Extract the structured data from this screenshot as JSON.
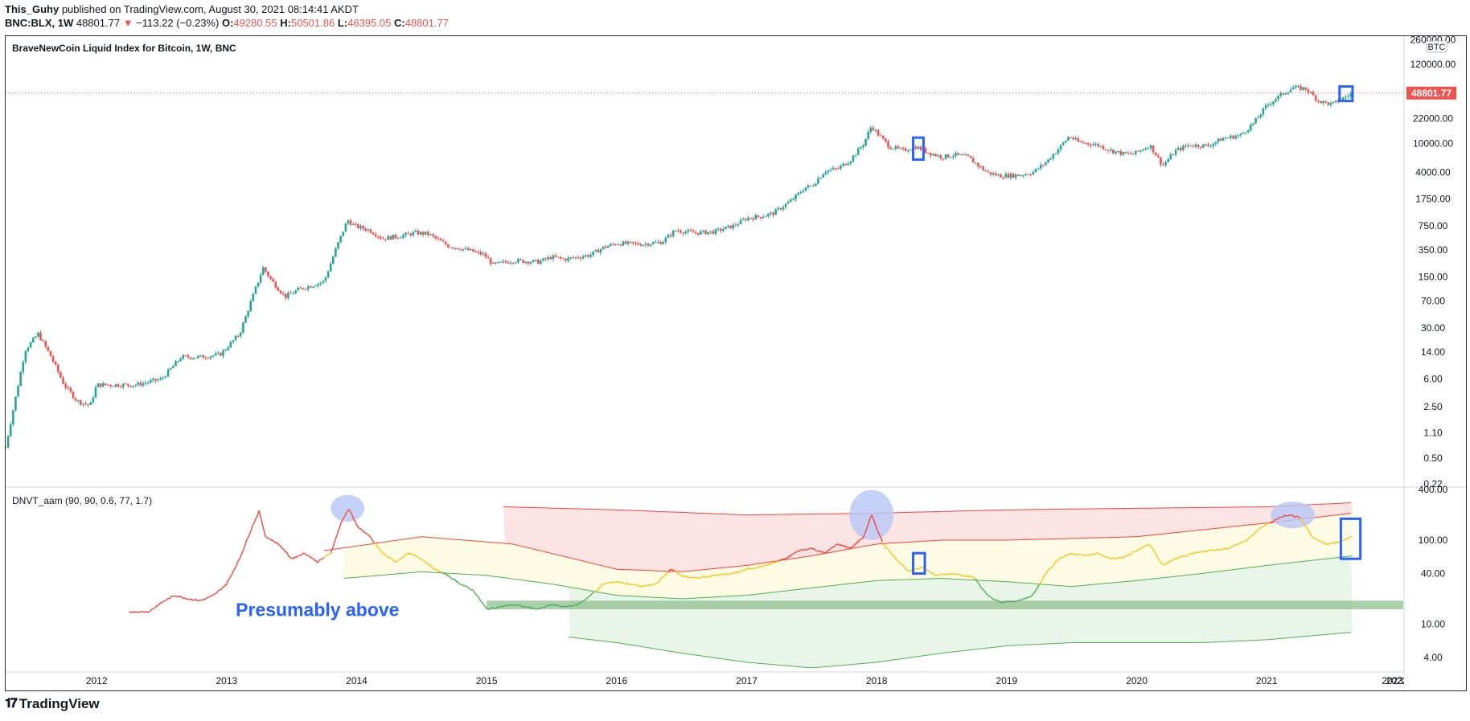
{
  "header": {
    "author": "This_Guhy",
    "published": "published on TradingView.com, August 30, 2021 08:14:41 AKDT",
    "symbol": "BNC:BLX, 1W",
    "last": "48801.77",
    "arrow": "▼",
    "change": "−113.22 (−0.23%)",
    "o_label": "O:",
    "o_value": "49280.55",
    "h_label": "H:",
    "h_value": "50501.86",
    "l_label": "L:",
    "l_value": "46395.05",
    "c_label": "C:",
    "c_value": "48801.77"
  },
  "footer": {
    "brand": "TradingView",
    "logo_glyph": "𝟏𝟕"
  },
  "colors": {
    "up": "#26a69a",
    "down": "#ef5350",
    "frame": "#2a2e39",
    "osc_red": "#f44336",
    "osc_yellow": "#f5c518",
    "osc_green": "#4caf50",
    "band_red_fill": "#fde4e4",
    "band_yellow_fill": "#fdfbe3",
    "band_green_fill": "#e9f5e9",
    "zone": "#8fbf8f",
    "highlight_circle": "#b7c7f5",
    "marker_box": "#2962ff",
    "price_line": "#ef5350"
  },
  "chart_data": [
    {
      "type": "candlestick",
      "title": "BraveNewCoin Liquid Index for Bitcoin, 1W, BNC",
      "currency_label": "BTC",
      "y_scale": "log",
      "y_ticks": [
        "260000.00",
        "120000.00",
        "48801.77",
        "22000.00",
        "10000.00",
        "4000.00",
        "1750.00",
        "750.00",
        "350.00",
        "150.00",
        "70.00",
        "30.00",
        "14.00",
        "6.00",
        "2.50",
        "1.10",
        "0.50",
        "0.22"
      ],
      "y_tick_values": [
        260000,
        120000,
        48801.77,
        22000,
        10000,
        4000,
        1750,
        750,
        350,
        150,
        70,
        30,
        14,
        6,
        2.5,
        1.1,
        0.5,
        0.22
      ],
      "last_price": 48801.77,
      "x_ticks": [
        "2012",
        "2013",
        "2014",
        "2015",
        "2016",
        "2017",
        "2018",
        "2019",
        "2020",
        "2021",
        "2022",
        "2023"
      ],
      "x_tick_values": [
        2012,
        2013,
        2014,
        2015,
        2016,
        2017,
        2018,
        2019,
        2020,
        2021,
        2022,
        2023
      ],
      "x_range": [
        2011.3,
        2022.05
      ],
      "series_close": [
        [
          2011.3,
          0.7
        ],
        [
          2011.45,
          15
        ],
        [
          2011.55,
          25
        ],
        [
          2011.65,
          12
        ],
        [
          2011.75,
          5
        ],
        [
          2011.85,
          3
        ],
        [
          2011.95,
          2.6
        ],
        [
          2012.0,
          5
        ],
        [
          2012.3,
          5
        ],
        [
          2012.5,
          6
        ],
        [
          2012.65,
          12
        ],
        [
          2012.8,
          12
        ],
        [
          2012.95,
          13
        ],
        [
          2013.1,
          25
        ],
        [
          2013.2,
          80
        ],
        [
          2013.28,
          200
        ],
        [
          2013.35,
          130
        ],
        [
          2013.45,
          80
        ],
        [
          2013.55,
          100
        ],
        [
          2013.75,
          130
        ],
        [
          2013.85,
          400
        ],
        [
          2013.93,
          900
        ],
        [
          2013.98,
          750
        ],
        [
          2014.1,
          650
        ],
        [
          2014.2,
          500
        ],
        [
          2014.35,
          550
        ],
        [
          2014.45,
          600
        ],
        [
          2014.55,
          580
        ],
        [
          2014.7,
          400
        ],
        [
          2014.85,
          350
        ],
        [
          2014.98,
          300
        ],
        [
          2015.05,
          220
        ],
        [
          2015.2,
          250
        ],
        [
          2015.4,
          240
        ],
        [
          2015.5,
          280
        ],
        [
          2015.6,
          260
        ],
        [
          2015.8,
          300
        ],
        [
          2015.9,
          380
        ],
        [
          2016.0,
          430
        ],
        [
          2016.2,
          420
        ],
        [
          2016.35,
          450
        ],
        [
          2016.45,
          650
        ],
        [
          2016.6,
          600
        ],
        [
          2016.75,
          620
        ],
        [
          2016.9,
          750
        ],
        [
          2017.0,
          950
        ],
        [
          2017.1,
          1000
        ],
        [
          2017.2,
          1100
        ],
        [
          2017.35,
          1700
        ],
        [
          2017.45,
          2500
        ],
        [
          2017.5,
          2600
        ],
        [
          2017.6,
          4200
        ],
        [
          2017.7,
          4500
        ],
        [
          2017.8,
          6000
        ],
        [
          2017.9,
          10000
        ],
        [
          2017.96,
          17500
        ],
        [
          2018.0,
          14000
        ],
        [
          2018.1,
          9000
        ],
        [
          2018.2,
          8000
        ],
        [
          2018.3,
          9000
        ],
        [
          2018.4,
          7500
        ],
        [
          2018.5,
          6500
        ],
        [
          2018.6,
          7000
        ],
        [
          2018.7,
          6500
        ],
        [
          2018.85,
          4000
        ],
        [
          2018.95,
          3600
        ],
        [
          2019.1,
          3700
        ],
        [
          2019.2,
          4000
        ],
        [
          2019.3,
          5500
        ],
        [
          2019.4,
          8500
        ],
        [
          2019.48,
          12500
        ],
        [
          2019.55,
          10500
        ],
        [
          2019.7,
          9500
        ],
        [
          2019.8,
          8000
        ],
        [
          2019.9,
          7200
        ],
        [
          2019.98,
          7200
        ],
        [
          2020.1,
          9500
        ],
        [
          2020.2,
          5000
        ],
        [
          2020.3,
          8000
        ],
        [
          2020.4,
          9500
        ],
        [
          2020.55,
          9300
        ],
        [
          2020.65,
          11500
        ],
        [
          2020.8,
          13000
        ],
        [
          2020.9,
          19000
        ],
        [
          2021.0,
          33000
        ],
        [
          2021.1,
          45000
        ],
        [
          2021.2,
          58000
        ],
        [
          2021.3,
          56000
        ],
        [
          2021.4,
          38000
        ],
        [
          2021.5,
          34000
        ],
        [
          2021.57,
          40000
        ],
        [
          2021.66,
          48801.77
        ]
      ],
      "marker_boxes": [
        {
          "x_from": 2018.28,
          "x_to": 2018.36,
          "y_low": 6000,
          "y_high": 12000
        },
        {
          "x_from": 2021.56,
          "x_to": 2021.66,
          "y_low": 38000,
          "y_high": 60000
        }
      ]
    },
    {
      "type": "line",
      "title": "DNVT_aam (90, 90, 0.6, 77, 1.7)",
      "y_scale": "log",
      "y_ticks": [
        "400.00",
        "100.00",
        "40.00",
        "10.00",
        "4.00"
      ],
      "y_tick_values": [
        400,
        100,
        40,
        10,
        4
      ],
      "annotation": "Presumably above",
      "oscillator": [
        [
          2012.25,
          14
        ],
        [
          2012.4,
          14
        ],
        [
          2012.5,
          18
        ],
        [
          2012.6,
          22
        ],
        [
          2012.7,
          20
        ],
        [
          2012.8,
          19
        ],
        [
          2012.9,
          22
        ],
        [
          2013.0,
          30
        ],
        [
          2013.1,
          60
        ],
        [
          2013.2,
          150
        ],
        [
          2013.25,
          220
        ],
        [
          2013.3,
          110
        ],
        [
          2013.4,
          90
        ],
        [
          2013.5,
          60
        ],
        [
          2013.6,
          70
        ],
        [
          2013.7,
          55
        ],
        [
          2013.8,
          70
        ],
        [
          2013.88,
          160
        ],
        [
          2013.94,
          240
        ],
        [
          2014.0,
          150
        ],
        [
          2014.1,
          110
        ],
        [
          2014.2,
          70
        ],
        [
          2014.3,
          55
        ],
        [
          2014.4,
          70
        ],
        [
          2014.5,
          60
        ],
        [
          2014.6,
          45
        ],
        [
          2014.7,
          38
        ],
        [
          2014.8,
          30
        ],
        [
          2014.9,
          25
        ],
        [
          2015.0,
          15
        ],
        [
          2015.1,
          16
        ],
        [
          2015.2,
          17
        ],
        [
          2015.3,
          16
        ],
        [
          2015.4,
          15
        ],
        [
          2015.5,
          17
        ],
        [
          2015.6,
          16
        ],
        [
          2015.7,
          17
        ],
        [
          2015.8,
          22
        ],
        [
          2015.9,
          30
        ],
        [
          2016.0,
          32
        ],
        [
          2016.2,
          28
        ],
        [
          2016.3,
          30
        ],
        [
          2016.42,
          45
        ],
        [
          2016.5,
          38
        ],
        [
          2016.6,
          35
        ],
        [
          2016.75,
          38
        ],
        [
          2016.9,
          40
        ],
        [
          2017.0,
          45
        ],
        [
          2017.15,
          50
        ],
        [
          2017.3,
          60
        ],
        [
          2017.4,
          75
        ],
        [
          2017.5,
          80
        ],
        [
          2017.6,
          70
        ],
        [
          2017.7,
          90
        ],
        [
          2017.8,
          80
        ],
        [
          2017.9,
          110
        ],
        [
          2017.96,
          200
        ],
        [
          2018.05,
          90
        ],
        [
          2018.15,
          60
        ],
        [
          2018.25,
          42
        ],
        [
          2018.35,
          48
        ],
        [
          2018.45,
          38
        ],
        [
          2018.6,
          40
        ],
        [
          2018.75,
          36
        ],
        [
          2018.85,
          22
        ],
        [
          2018.95,
          18
        ],
        [
          2019.1,
          19
        ],
        [
          2019.2,
          22
        ],
        [
          2019.3,
          40
        ],
        [
          2019.4,
          60
        ],
        [
          2019.5,
          70
        ],
        [
          2019.6,
          65
        ],
        [
          2019.7,
          70
        ],
        [
          2019.8,
          60
        ],
        [
          2019.9,
          62
        ],
        [
          2020.0,
          75
        ],
        [
          2020.1,
          90
        ],
        [
          2020.2,
          50
        ],
        [
          2020.3,
          60
        ],
        [
          2020.45,
          70
        ],
        [
          2020.55,
          75
        ],
        [
          2020.7,
          80
        ],
        [
          2020.85,
          100
        ],
        [
          2020.95,
          140
        ],
        [
          2021.05,
          170
        ],
        [
          2021.15,
          200
        ],
        [
          2021.25,
          190
        ],
        [
          2021.35,
          110
        ],
        [
          2021.45,
          90
        ],
        [
          2021.55,
          95
        ],
        [
          2021.62,
          105
        ],
        [
          2021.66,
          110
        ]
      ],
      "bands": {
        "red_upper": [
          [
            2015.13,
            250
          ],
          [
            2016.0,
            230
          ],
          [
            2017.0,
            200
          ],
          [
            2018.0,
            210
          ],
          [
            2019.0,
            230
          ],
          [
            2020.0,
            240
          ],
          [
            2021.0,
            250
          ],
          [
            2021.66,
            280
          ]
        ],
        "red_lower": [
          [
            2013.75,
            75
          ],
          [
            2014.5,
            110
          ],
          [
            2015.2,
            90
          ],
          [
            2016.0,
            45
          ],
          [
            2016.5,
            42
          ],
          [
            2017.0,
            50
          ],
          [
            2017.5,
            65
          ],
          [
            2018.0,
            90
          ],
          [
            2018.5,
            100
          ],
          [
            2019.0,
            100
          ],
          [
            2020.0,
            110
          ],
          [
            2021.0,
            160
          ],
          [
            2021.66,
            210
          ]
        ],
        "yellow_upper": [
          [
            2013.75,
            75
          ],
          [
            2014.5,
            110
          ],
          [
            2015.2,
            90
          ],
          [
            2016.0,
            45
          ],
          [
            2016.5,
            42
          ],
          [
            2017.0,
            50
          ],
          [
            2017.5,
            65
          ],
          [
            2018.0,
            90
          ],
          [
            2018.5,
            100
          ],
          [
            2019.0,
            100
          ],
          [
            2020.0,
            110
          ],
          [
            2021.0,
            160
          ],
          [
            2021.66,
            210
          ]
        ],
        "green_upper": [
          [
            2013.9,
            35
          ],
          [
            2014.5,
            42
          ],
          [
            2015.0,
            38
          ],
          [
            2015.5,
            30
          ],
          [
            2016.0,
            22
          ],
          [
            2016.5,
            20
          ],
          [
            2017.0,
            22
          ],
          [
            2017.5,
            27
          ],
          [
            2018.0,
            33
          ],
          [
            2018.5,
            35
          ],
          [
            2019.0,
            32
          ],
          [
            2019.5,
            28
          ],
          [
            2020.0,
            33
          ],
          [
            2020.5,
            40
          ],
          [
            2021.0,
            50
          ],
          [
            2021.66,
            65
          ]
        ],
        "green_lower": [
          [
            2015.63,
            7
          ],
          [
            2016.0,
            6
          ],
          [
            2016.5,
            4.5
          ],
          [
            2017.0,
            3.5
          ],
          [
            2017.5,
            3.0
          ],
          [
            2018.0,
            3.5
          ],
          [
            2018.5,
            4.5
          ],
          [
            2019.0,
            5.5
          ],
          [
            2019.5,
            6
          ],
          [
            2020.0,
            6
          ],
          [
            2020.5,
            6
          ],
          [
            2021.0,
            6.5
          ],
          [
            2021.66,
            8
          ]
        ]
      },
      "zone": {
        "y_low": 15,
        "y_high": 19,
        "x_from": 2015.0,
        "x_to": 2023.05
      },
      "highlight_circles": [
        {
          "x": 2013.93,
          "y": 240,
          "rx_years": 0.13,
          "ry_decades": 0.16
        },
        {
          "x": 2017.96,
          "y": 200,
          "rx_years": 0.17,
          "ry_decades": 0.3
        },
        {
          "x": 2021.2,
          "y": 200,
          "rx_years": 0.17,
          "ry_decades": 0.16
        }
      ],
      "marker_boxes": [
        {
          "x_from": 2018.28,
          "x_to": 2018.37,
          "y_low": 40,
          "y_high": 70
        },
        {
          "x_from": 2021.57,
          "x_to": 2021.72,
          "y_low": 60,
          "y_high": 180
        }
      ]
    }
  ]
}
